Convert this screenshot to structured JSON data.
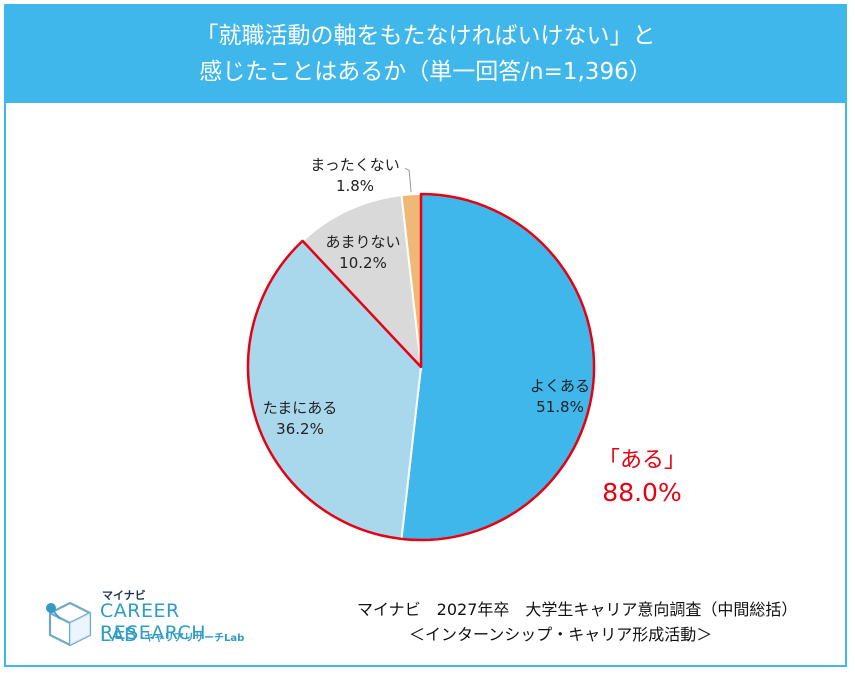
{
  "header": {
    "title_line1": "「就職活動の軸をもたなければいけない」と",
    "title_line2": "感じたことはあるか（単一回答/n=1,396）"
  },
  "chart_data": {
    "type": "pie",
    "slices": [
      {
        "label": "よくある",
        "value": 51.8,
        "value_label": "51.8%",
        "color": "#3fb7ea"
      },
      {
        "label": "たまにある",
        "value": 36.2,
        "value_label": "36.2%",
        "color": "#a9d8ec"
      },
      {
        "label": "あまりない",
        "value": 10.2,
        "value_label": "10.2%",
        "color": "#d9d9d9"
      },
      {
        "label": "まったくない",
        "value": 1.8,
        "value_label": "1.8%",
        "color": "#f0b876"
      }
    ],
    "highlight": {
      "label": "「ある」",
      "value_label": "88.0%",
      "covers": [
        "よくある",
        "たまにある"
      ],
      "color": "#e60012"
    }
  },
  "source": {
    "line1": "マイナビ　2027年卒　大学生キャリア意向調査（中間総括）",
    "line2": "＜インターンシップ・キャリア形成活動＞"
  },
  "logo": {
    "brand_small": "マイナビ",
    "line1": "CAREER RESEARCH",
    "line2": "LAB",
    "sub": "キャリアリサーチLab"
  }
}
